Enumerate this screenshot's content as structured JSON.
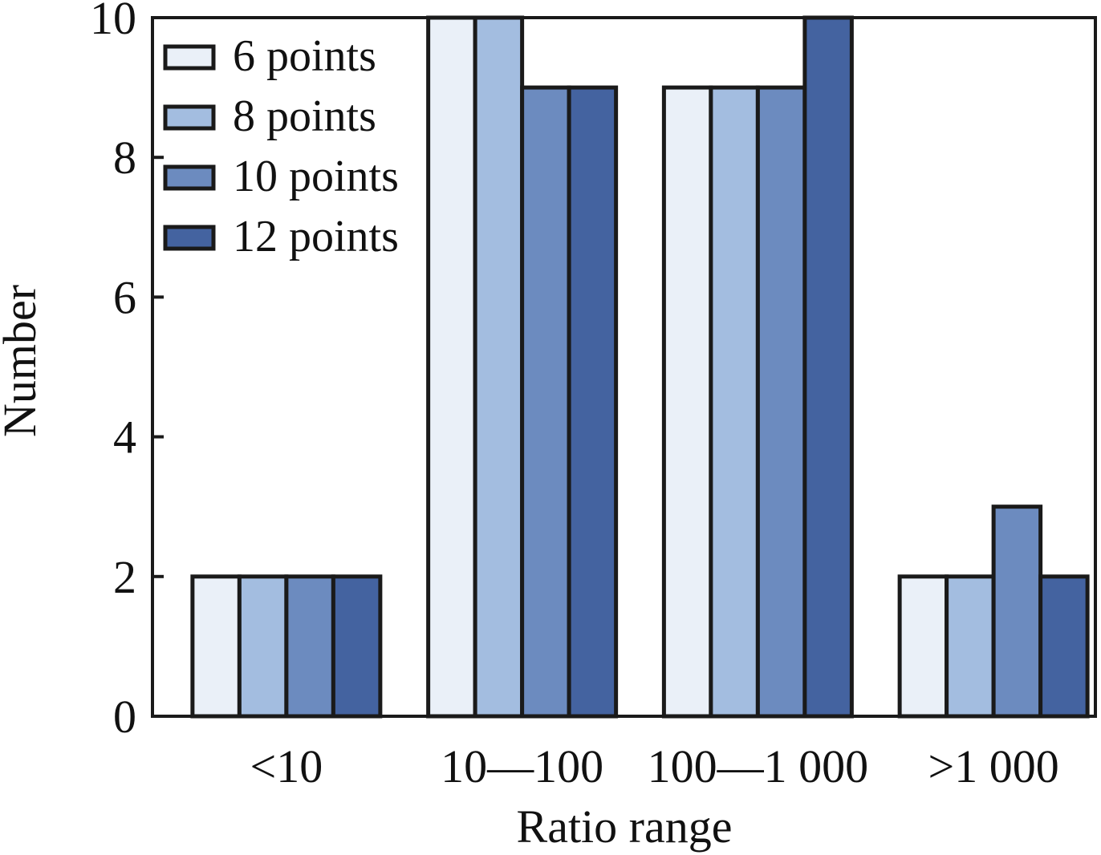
{
  "chart_data": {
    "type": "bar",
    "categories": [
      "<10",
      "10—100",
      "100—1 000",
      ">1 000"
    ],
    "series": [
      {
        "name": "6 points",
        "values": [
          2,
          10,
          9,
          2
        ],
        "color": "#eaf0f8"
      },
      {
        "name": "8 points",
        "values": [
          2,
          10,
          9,
          2
        ],
        "color": "#a3bde0"
      },
      {
        "name": "10 points",
        "values": [
          2,
          9,
          9,
          3
        ],
        "color": "#6c8bbf"
      },
      {
        "name": "12 points",
        "values": [
          2,
          9,
          10,
          2
        ],
        "color": "#4463a0"
      }
    ],
    "xlabel": "Ratio range",
    "ylabel": "Number",
    "ylim": [
      0,
      10
    ],
    "yticks": [
      "0",
      "2",
      "4",
      "6",
      "8",
      "10"
    ],
    "grid": false,
    "legend_position": "top-left"
  }
}
